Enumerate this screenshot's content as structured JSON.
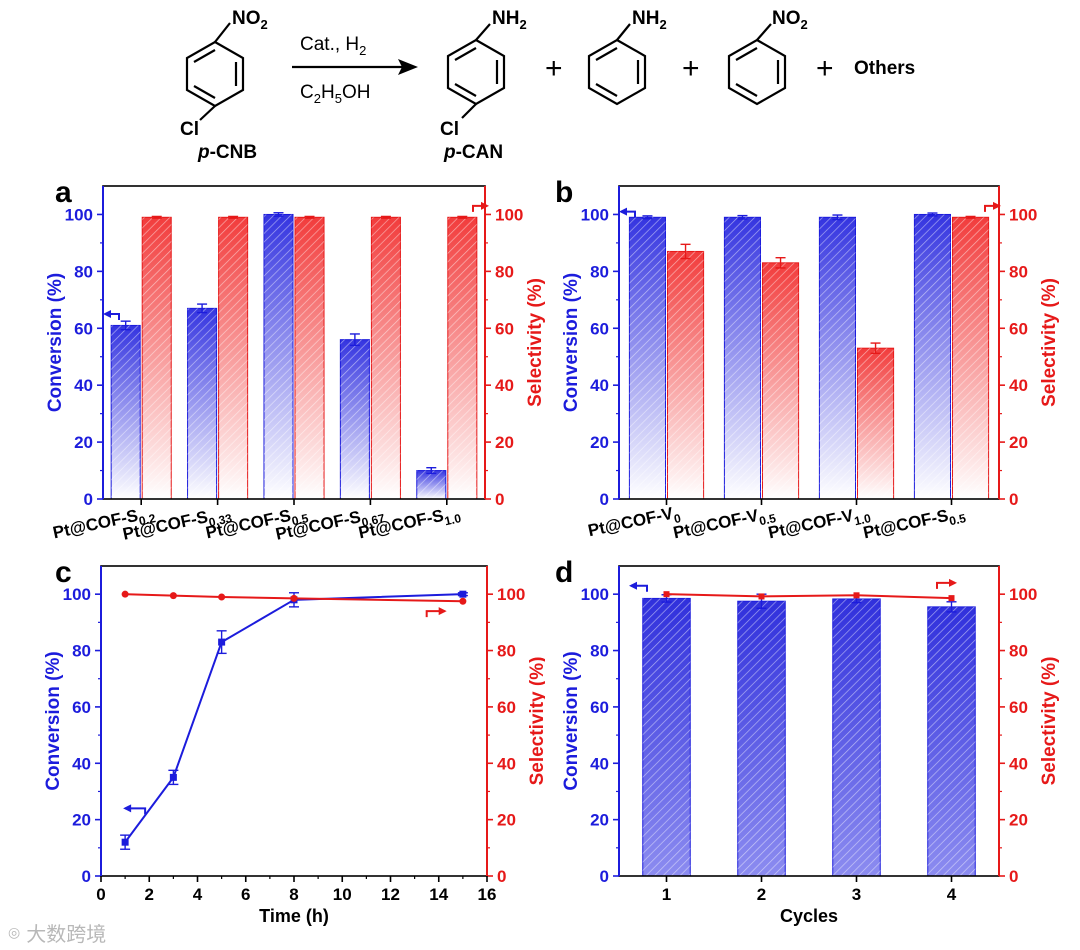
{
  "scheme": {
    "reactant_label_prefix": "p",
    "reactant_label_suffix": "-CNB",
    "product_label_prefix": "p",
    "product_label_suffix": "-CAN",
    "reagent_top": "Cat., H",
    "reagent_top_sub": "2",
    "reagent_bottom_a": "C",
    "reagent_bottom_sub1": "2",
    "reagent_bottom_b": "H",
    "reagent_bottom_sub2": "5",
    "reagent_bottom_c": "OH",
    "plus": "+",
    "others": "Others",
    "nitro": "NO",
    "nitro_sub": "2",
    "amino": "NH",
    "amino_sub": "2",
    "chloro": "Cl"
  },
  "watermark": "大数跨境",
  "colors": {
    "blue": "#1c1cdc",
    "red": "#e61919",
    "axis": "#000000"
  },
  "chart_data": [
    {
      "panel": "a",
      "type": "bar",
      "categories": [
        "Pt@COF-S0.2",
        "Pt@COF-S0.33",
        "Pt@COF-S0.5",
        "Pt@COF-S0.67",
        "Pt@COF-S1.0"
      ],
      "category_main": [
        "Pt@COF-S",
        "Pt@COF-S",
        "Pt@COF-S",
        "Pt@COF-S",
        "Pt@COF-S"
      ],
      "category_sub": [
        "0.2",
        "0.33",
        "0.5",
        "0.67",
        "1.0"
      ],
      "series": [
        {
          "name": "Conversion (%)",
          "axis": "left",
          "values": [
            61,
            67,
            100,
            56,
            10
          ],
          "errors": [
            1.5,
            1.5,
            0.6,
            2,
            1
          ]
        },
        {
          "name": "Selectivity (%)",
          "axis": "right",
          "values": [
            99,
            99,
            99,
            99,
            99
          ],
          "errors": [
            0.3,
            0.3,
            0.3,
            0.3,
            0.3
          ]
        }
      ],
      "ylabel_left": "Conversion (%)",
      "ylabel_right": "Selectivity (%)",
      "ylim_left": [
        0,
        110
      ],
      "ylim_right": [
        0,
        110
      ],
      "yticks": [
        0,
        20,
        40,
        60,
        80,
        100
      ]
    },
    {
      "panel": "b",
      "type": "bar",
      "categories": [
        "Pt@COF-V0",
        "Pt@COF-V0.5",
        "Pt@COF-V1.0",
        "Pt@COF-S0.5"
      ],
      "category_main": [
        "Pt@COF-V",
        "Pt@COF-V",
        "Pt@COF-V",
        "Pt@COF-S"
      ],
      "category_sub": [
        "0",
        "0.5",
        "1.0",
        "0.5"
      ],
      "series": [
        {
          "name": "Conversion (%)",
          "axis": "left",
          "values": [
            99,
            99,
            99,
            100
          ],
          "errors": [
            0.5,
            0.6,
            0.8,
            0.5
          ]
        },
        {
          "name": "Selectivity (%)",
          "axis": "right",
          "values": [
            87,
            83,
            53,
            99
          ],
          "errors": [
            2.5,
            1.8,
            1.8,
            0.3
          ]
        }
      ],
      "ylabel_left": "Conversion (%)",
      "ylabel_right": "Selectivity (%)",
      "ylim_left": [
        0,
        110
      ],
      "ylim_right": [
        0,
        110
      ],
      "yticks": [
        0,
        20,
        40,
        60,
        80,
        100
      ]
    },
    {
      "panel": "c",
      "type": "line",
      "series": [
        {
          "name": "Conversion (%)",
          "axis": "left",
          "x": [
            1,
            3,
            5,
            8,
            15
          ],
          "values": [
            12,
            35,
            83,
            98,
            100
          ],
          "errors": [
            2.5,
            2.5,
            4,
            2.5,
            0.5
          ]
        },
        {
          "name": "Selectivity (%)",
          "axis": "right",
          "x": [
            1,
            3,
            5,
            8,
            15
          ],
          "values": [
            100,
            99.5,
            99,
            98.5,
            97.5
          ],
          "errors": [
            0.3,
            0.3,
            0.3,
            0.3,
            0.3
          ]
        }
      ],
      "xlabel": "Time (h)",
      "ylabel_left": "Conversion (%)",
      "ylabel_right": "Selectivity (%)",
      "xlim": [
        0,
        16
      ],
      "xticks": [
        0,
        2,
        4,
        6,
        8,
        10,
        12,
        14,
        16
      ],
      "ylim_left": [
        0,
        110
      ],
      "ylim_right": [
        0,
        110
      ],
      "yticks": [
        0,
        20,
        40,
        60,
        80,
        100
      ]
    },
    {
      "panel": "d",
      "type": "bar",
      "categories": [
        "1",
        "2",
        "3",
        "4"
      ],
      "series": [
        {
          "name": "Conversion (%)",
          "axis": "left",
          "values": [
            98.5,
            97.5,
            98.3,
            95.5
          ],
          "errors": [
            1.3,
            2.5,
            1.3,
            1.8
          ]
        },
        {
          "name": "Selectivity (%)",
          "axis": "right",
          "type": "line",
          "values": [
            100,
            99.2,
            99.6,
            98.6
          ]
        }
      ],
      "xlabel": "Cycles",
      "ylabel_left": "Conversion (%)",
      "ylabel_right": "Selectivity (%)",
      "ylim_left": [
        0,
        110
      ],
      "ylim_right": [
        0,
        110
      ],
      "yticks": [
        0,
        20,
        40,
        60,
        80,
        100
      ]
    }
  ]
}
